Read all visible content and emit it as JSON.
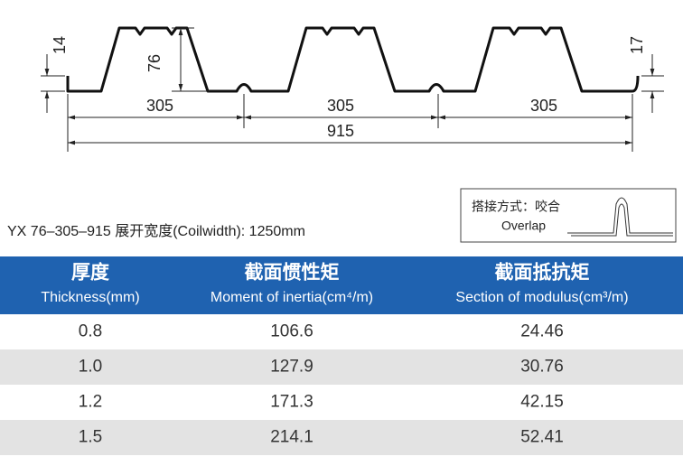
{
  "drawing": {
    "left_height": "14",
    "rib_height": "76",
    "right_height": "17",
    "pitch": [
      "305",
      "305",
      "305"
    ],
    "overall": "915"
  },
  "spec": "YX 76–305–915  展开宽度(Coilwidth): 1250mm",
  "overlap": {
    "label_cn": "搭接方式：咬合",
    "label_en": "Overlap"
  },
  "table": {
    "headers": [
      {
        "cn": "厚度",
        "en": "Thickness(mm)"
      },
      {
        "cn": "截面惯性矩",
        "en": "Moment of inertia(cm⁴/m)"
      },
      {
        "cn": "截面抵抗矩",
        "en": "Section of modulus(cm³/m)"
      }
    ],
    "rows": [
      [
        "0.8",
        "106.6",
        "24.46"
      ],
      [
        "1.0",
        "127.9",
        "30.76"
      ],
      [
        "1.2",
        "171.3",
        "42.15"
      ],
      [
        "1.5",
        "214.1",
        "52.41"
      ]
    ]
  }
}
